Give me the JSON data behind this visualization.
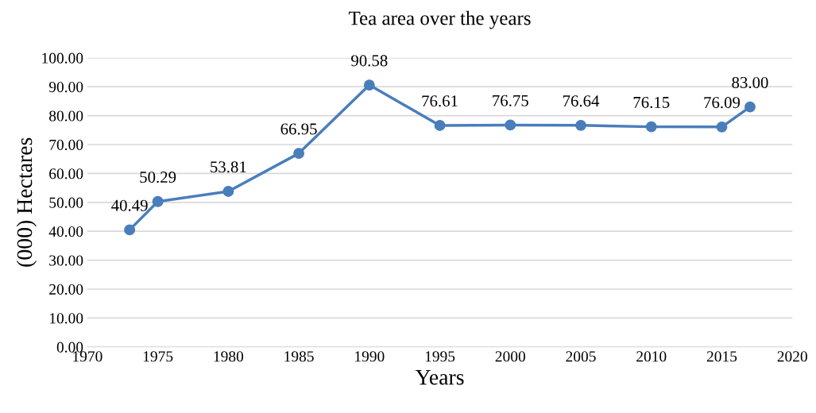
{
  "chart_data": {
    "type": "line",
    "title": "Tea area over the years",
    "xlabel": "Years",
    "ylabel": "(000) Hectares",
    "x": [
      1973,
      1975,
      1980,
      1985,
      1990,
      1995,
      2000,
      2005,
      2010,
      2015,
      2017
    ],
    "series": [
      {
        "color": "#4a7ebb",
        "values": [
          40.49,
          50.29,
          53.81,
          66.95,
          90.58,
          76.61,
          76.75,
          76.64,
          76.15,
          76.09,
          83.0
        ]
      }
    ],
    "value_labels": [
      "40.49",
      "50.29",
      "53.81",
      "66.95",
      "90.58",
      "76.61",
      "76.75",
      "76.64",
      "76.15",
      "76.09",
      "83.00"
    ],
    "xlim": [
      1970,
      2020
    ],
    "xticks": [
      1970,
      1975,
      1980,
      1985,
      1990,
      1995,
      2000,
      2005,
      2010,
      2015,
      2020
    ],
    "ylim": [
      0,
      100
    ],
    "yticks": [
      {
        "value": 0,
        "label": "0.00"
      },
      {
        "value": 10,
        "label": "10.00"
      },
      {
        "value": 20,
        "label": "20.00"
      },
      {
        "value": 30,
        "label": "30.00"
      },
      {
        "value": 40,
        "label": "40.00"
      },
      {
        "value": 50,
        "label": "50.00"
      },
      {
        "value": 60,
        "label": "60.00"
      },
      {
        "value": 70,
        "label": "70.00"
      },
      {
        "value": 80,
        "label": "80.00"
      },
      {
        "value": 90,
        "label": "90.00"
      },
      {
        "value": 100,
        "label": "100.00"
      }
    ],
    "grid": "y",
    "marker": "circle",
    "line_style": "solid",
    "legend": false
  }
}
